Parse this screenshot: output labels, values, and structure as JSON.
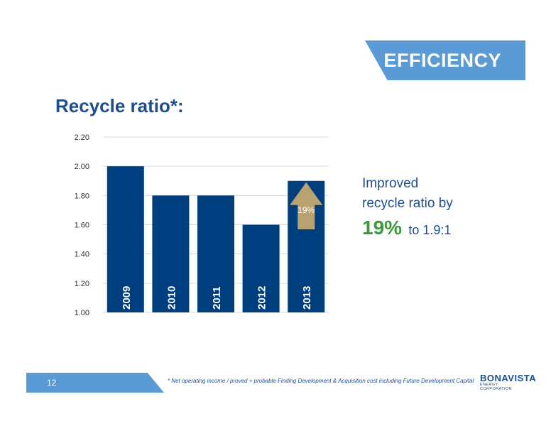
{
  "header": {
    "section_label": "EFFICIENCY"
  },
  "title": "Recycle ratio*:",
  "chart_data": {
    "type": "bar",
    "categories": [
      "2009",
      "2010",
      "2011",
      "2012",
      "2013"
    ],
    "values": [
      2.0,
      1.8,
      1.8,
      1.6,
      1.9
    ],
    "y_ticks": [
      "1.00",
      "1.20",
      "1.40",
      "1.60",
      "1.80",
      "2.00",
      "2.20"
    ],
    "ylim": [
      1.0,
      2.2
    ],
    "grid": true,
    "annotation": {
      "text": "19%",
      "category": "2013"
    },
    "colors": {
      "bar": "#003f7f",
      "arrow": "#b8a272",
      "grid": "#d9d9d9"
    }
  },
  "callout": {
    "line1": "Improved",
    "line2": "recycle ratio by",
    "percent": "19%",
    "to_text": "to 1.9:1"
  },
  "footer": {
    "page_number": "12",
    "footnote": "* Net operating income / proved + probable Finding Development & Acquisition cost including Future Development Capital",
    "logo_line1": "BONAVISTA",
    "logo_line2": "ENERGY CORPORATION"
  }
}
